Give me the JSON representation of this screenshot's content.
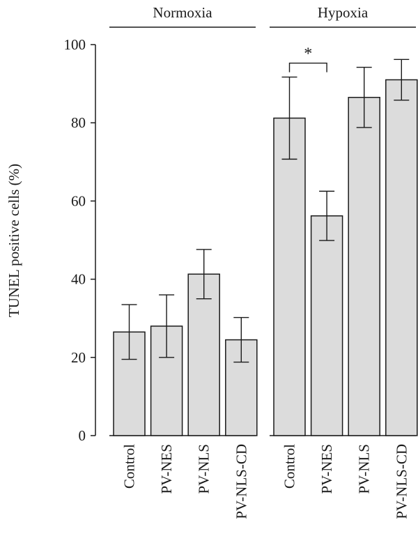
{
  "chart_data": {
    "type": "bar",
    "ylabel": "TUNEL positive cells (%)",
    "ylim": [
      0,
      100
    ],
    "yticks": [
      0,
      20,
      40,
      60,
      80,
      100
    ],
    "groups": [
      {
        "name": "Normoxia",
        "categories": [
          "Control",
          "PV-NES",
          "PV-NLS",
          "PV-NLS-CD"
        ],
        "values": [
          26.5,
          28,
          41.3,
          24.5
        ],
        "errors": [
          7,
          8,
          6.3,
          5.7
        ]
      },
      {
        "name": "Hypoxia",
        "categories": [
          "Control",
          "PV-NES",
          "PV-NLS",
          "PV-NLS-CD"
        ],
        "values": [
          81.2,
          56.2,
          86.5,
          91
        ],
        "errors": [
          10.5,
          6.3,
          7.7,
          5.2
        ]
      }
    ],
    "significance": [
      {
        "group": 1,
        "from": 0,
        "to": 1,
        "label": "*"
      }
    ],
    "colors": {
      "bar_fill": "#dcdcdc",
      "stroke": "#1a1a1a"
    }
  }
}
